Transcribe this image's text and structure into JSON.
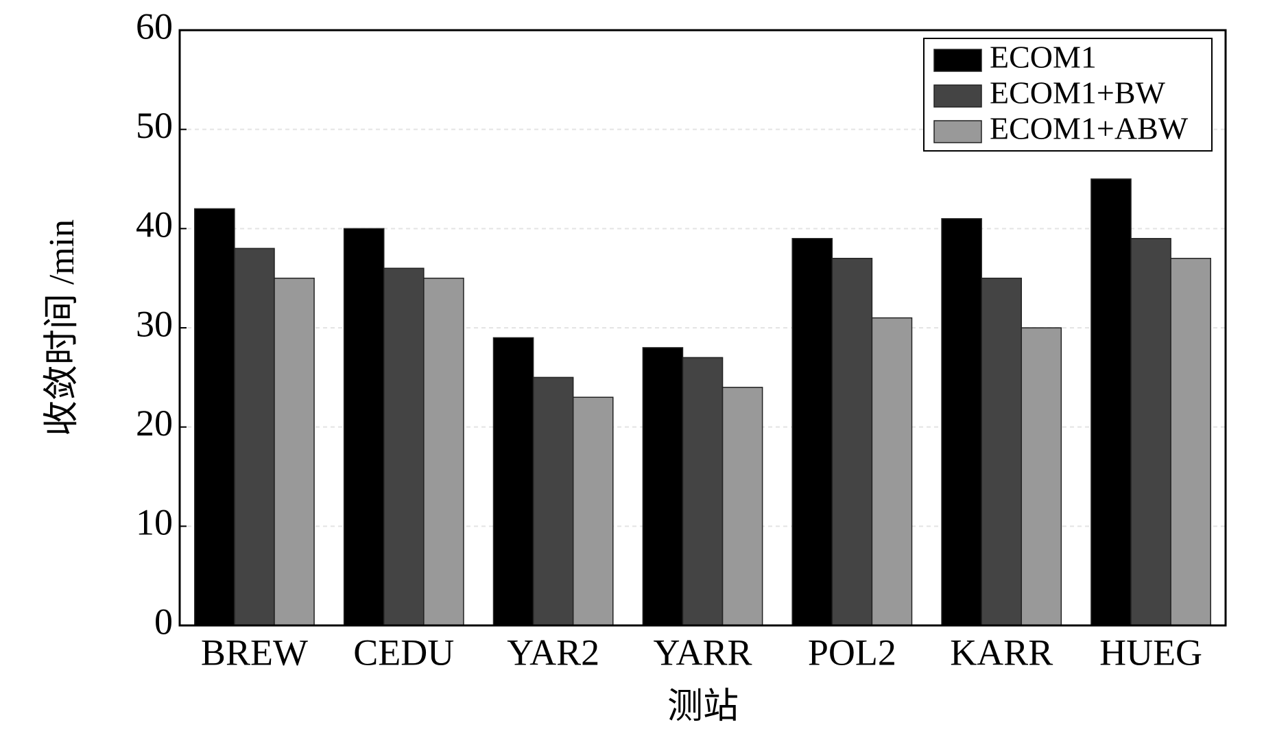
{
  "chart_data": {
    "type": "bar",
    "x_label": "测站",
    "y_label": "收敛时间 /min",
    "categories": [
      "BREW",
      "CEDU",
      "YAR2",
      "YARR",
      "POL2",
      "KARR",
      "HUEG"
    ],
    "series": [
      {
        "name": "ECOM1",
        "color": "#000000",
        "values": [
          42,
          40,
          29,
          28,
          39,
          41,
          45
        ]
      },
      {
        "name": "ECOM1+BW",
        "color": "#444444",
        "values": [
          38,
          36,
          25,
          27,
          37,
          35,
          39
        ]
      },
      {
        "name": "ECOM1+ABW",
        "color": "#999999",
        "values": [
          35,
          35,
          23,
          24,
          31,
          30,
          37
        ]
      }
    ],
    "ylim": [
      0,
      60
    ],
    "yticks": [
      0,
      10,
      20,
      30,
      40,
      50,
      60
    ],
    "grid": true,
    "legend": "upper right"
  }
}
